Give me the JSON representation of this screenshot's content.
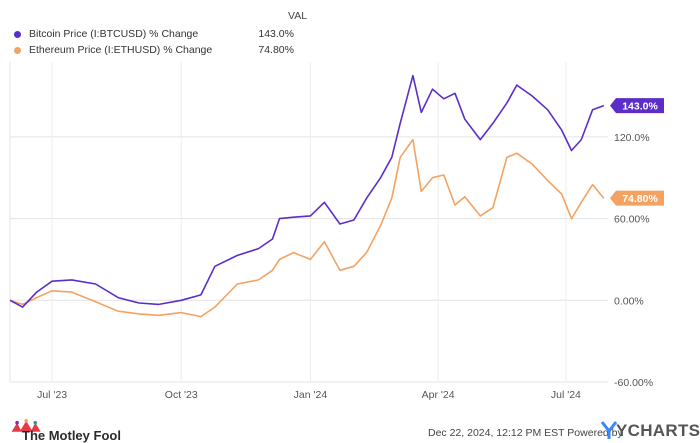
{
  "legend": {
    "value_header": "VAL",
    "items": [
      {
        "name": "Bitcoin Price (I:BTCUSD) % Change",
        "value": "143.0%",
        "color": "#5b2ec9"
      },
      {
        "name": "Ethereum Price (I:ETHUSD) % Change",
        "value": "74.80%",
        "color": "#f4a261"
      }
    ]
  },
  "chart_data": {
    "type": "line",
    "x_tick_labels": [
      "Jul '23",
      "Oct '23",
      "Jan '24",
      "Apr '24",
      "Jul '24"
    ],
    "y_tick_labels": [
      "120.0%",
      "60.00%",
      "0.00%",
      "-60.00%"
    ],
    "y_ticks": [
      120,
      60,
      0,
      -60
    ],
    "ylim": [
      -60,
      175
    ],
    "xlim": [
      "2023-06-01",
      "2024-07-31"
    ],
    "grid": true,
    "series": [
      {
        "name": "Bitcoin Price (I:BTCUSD) % Change",
        "color": "#5b2ec9",
        "end_label": "143.0%",
        "points": [
          [
            "2023-06-01",
            0
          ],
          [
            "2023-06-10",
            -5
          ],
          [
            "2023-06-20",
            6
          ],
          [
            "2023-07-01",
            14
          ],
          [
            "2023-07-15",
            15
          ],
          [
            "2023-08-01",
            12
          ],
          [
            "2023-08-17",
            2
          ],
          [
            "2023-09-01",
            -2
          ],
          [
            "2023-09-15",
            -3
          ],
          [
            "2023-10-01",
            0
          ],
          [
            "2023-10-15",
            4
          ],
          [
            "2023-10-25",
            25
          ],
          [
            "2023-11-10",
            33
          ],
          [
            "2023-11-25",
            38
          ],
          [
            "2023-12-05",
            45
          ],
          [
            "2023-12-10",
            60
          ],
          [
            "2023-12-20",
            61
          ],
          [
            "2024-01-01",
            62
          ],
          [
            "2024-01-11",
            72
          ],
          [
            "2024-01-22",
            56
          ],
          [
            "2024-02-01",
            59
          ],
          [
            "2024-02-10",
            75
          ],
          [
            "2024-02-20",
            90
          ],
          [
            "2024-02-28",
            105
          ],
          [
            "2024-03-05",
            130
          ],
          [
            "2024-03-14",
            165
          ],
          [
            "2024-03-20",
            138
          ],
          [
            "2024-03-28",
            155
          ],
          [
            "2024-04-05",
            148
          ],
          [
            "2024-04-13",
            152
          ],
          [
            "2024-04-20",
            133
          ],
          [
            "2024-05-01",
            118
          ],
          [
            "2024-05-10",
            130
          ],
          [
            "2024-05-20",
            145
          ],
          [
            "2024-05-27",
            158
          ],
          [
            "2024-06-07",
            150
          ],
          [
            "2024-06-18",
            140
          ],
          [
            "2024-06-28",
            125
          ],
          [
            "2024-07-05",
            110
          ],
          [
            "2024-07-12",
            118
          ],
          [
            "2024-07-20",
            140
          ],
          [
            "2024-07-28",
            143
          ]
        ]
      },
      {
        "name": "Ethereum Price (I:ETHUSD) % Change",
        "color": "#f4a261",
        "end_label": "74.80%",
        "points": [
          [
            "2023-06-01",
            0
          ],
          [
            "2023-06-10",
            -3
          ],
          [
            "2023-06-20",
            2
          ],
          [
            "2023-07-01",
            7
          ],
          [
            "2023-07-15",
            6
          ],
          [
            "2023-08-01",
            -1
          ],
          [
            "2023-08-17",
            -8
          ],
          [
            "2023-09-01",
            -10
          ],
          [
            "2023-09-15",
            -11
          ],
          [
            "2023-10-01",
            -9
          ],
          [
            "2023-10-15",
            -12
          ],
          [
            "2023-10-25",
            -5
          ],
          [
            "2023-11-10",
            12
          ],
          [
            "2023-11-25",
            15
          ],
          [
            "2023-12-05",
            22
          ],
          [
            "2023-12-10",
            30
          ],
          [
            "2023-12-20",
            35
          ],
          [
            "2024-01-01",
            30
          ],
          [
            "2024-01-11",
            43
          ],
          [
            "2024-01-22",
            22
          ],
          [
            "2024-02-01",
            25
          ],
          [
            "2024-02-10",
            35
          ],
          [
            "2024-02-20",
            55
          ],
          [
            "2024-02-28",
            75
          ],
          [
            "2024-03-05",
            105
          ],
          [
            "2024-03-14",
            118
          ],
          [
            "2024-03-20",
            80
          ],
          [
            "2024-03-28",
            90
          ],
          [
            "2024-04-05",
            92
          ],
          [
            "2024-04-13",
            70
          ],
          [
            "2024-04-20",
            76
          ],
          [
            "2024-05-01",
            62
          ],
          [
            "2024-05-10",
            68
          ],
          [
            "2024-05-20",
            105
          ],
          [
            "2024-05-27",
            108
          ],
          [
            "2024-06-07",
            100
          ],
          [
            "2024-06-18",
            88
          ],
          [
            "2024-06-28",
            78
          ],
          [
            "2024-07-05",
            60
          ],
          [
            "2024-07-12",
            72
          ],
          [
            "2024-07-20",
            85
          ],
          [
            "2024-07-28",
            75
          ]
        ]
      }
    ]
  },
  "footer": {
    "brand": "The Motley Fool",
    "timestamp": "Dec 22, 2024, 12:12 PM EST  Powered by",
    "source": "YCHARTS"
  }
}
